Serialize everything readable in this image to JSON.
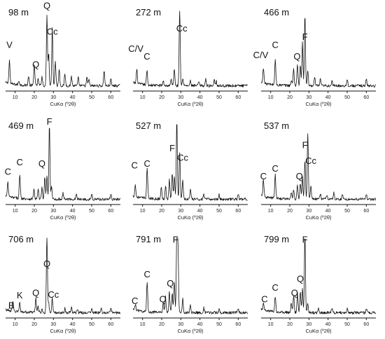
{
  "chart_data": [
    {
      "type": "line",
      "title": "98 m",
      "xlabel": "CuKα (º2θ)",
      "xlim": [
        5,
        65
      ],
      "x_ticks": [
        10,
        20,
        30,
        40,
        50,
        60
      ],
      "peaks": [
        [
          7,
          0.3
        ],
        [
          12,
          0.05
        ],
        [
          17,
          0.12
        ],
        [
          20,
          0.28
        ],
        [
          22,
          0.08
        ],
        [
          24,
          0.12
        ],
        [
          26.6,
          0.9
        ],
        [
          27.5,
          0.42
        ],
        [
          29.4,
          0.75
        ],
        [
          31,
          0.32
        ],
        [
          33,
          0.22
        ],
        [
          36,
          0.15
        ],
        [
          39.4,
          0.12
        ],
        [
          43,
          0.1
        ],
        [
          47.5,
          0.1
        ],
        [
          48.5,
          0.08
        ],
        [
          56.5,
          0.2
        ],
        [
          60,
          0.08
        ]
      ],
      "annotations": [
        {
          "text": "Q",
          "x": 26.6,
          "y": 1.05
        },
        {
          "text": "Cc",
          "x": 29.4,
          "y": 0.72
        },
        {
          "text": "V",
          "x": 7,
          "y": 0.55
        },
        {
          "text": "Q",
          "x": 20.8,
          "y": 0.3
        }
      ]
    },
    {
      "type": "line",
      "title": "272 m",
      "xlabel": "CuKα (º2θ)",
      "xlim": [
        5,
        65
      ],
      "x_ticks": [
        10,
        20,
        30,
        40,
        50,
        60
      ],
      "peaks": [
        [
          7,
          0.18
        ],
        [
          12.3,
          0.18
        ],
        [
          20.8,
          0.06
        ],
        [
          25,
          0.08
        ],
        [
          26.6,
          0.22
        ],
        [
          29.4,
          1.0
        ],
        [
          31,
          0.1
        ],
        [
          35,
          0.06
        ],
        [
          39.4,
          0.05
        ],
        [
          43,
          0.08
        ],
        [
          47.5,
          0.08
        ],
        [
          48.5,
          0.06
        ]
      ],
      "annotations": [
        {
          "text": "Cc",
          "x": 30.5,
          "y": 0.76
        },
        {
          "text": "C/V",
          "x": 6.5,
          "y": 0.5
        },
        {
          "text": "C",
          "x": 12.3,
          "y": 0.4
        }
      ]
    },
    {
      "type": "line",
      "title": "466 m",
      "xlabel": "CuKα (º2θ)",
      "xlim": [
        5,
        65
      ],
      "x_ticks": [
        10,
        20,
        30,
        40,
        50,
        60
      ],
      "peaks": [
        [
          6.2,
          0.2
        ],
        [
          12.4,
          0.32
        ],
        [
          20.8,
          0.06
        ],
        [
          22,
          0.22
        ],
        [
          24,
          0.28
        ],
        [
          25.5,
          0.25
        ],
        [
          26.6,
          0.55
        ],
        [
          27.9,
          0.9
        ],
        [
          29.4,
          0.18
        ],
        [
          33,
          0.1
        ],
        [
          36,
          0.08
        ],
        [
          42,
          0.06
        ],
        [
          50,
          0.08
        ],
        [
          60,
          0.08
        ]
      ],
      "annotations": [
        {
          "text": "F",
          "x": 27.9,
          "y": 0.65
        },
        {
          "text": "C",
          "x": 12.4,
          "y": 0.55
        },
        {
          "text": "C/V",
          "x": 4.8,
          "y": 0.42
        },
        {
          "text": "Q",
          "x": 23.8,
          "y": 0.4
        }
      ]
    },
    {
      "type": "line",
      "title": "469 m",
      "xlabel": "CuKα (º2θ)",
      "xlim": [
        5,
        65
      ],
      "x_ticks": [
        10,
        20,
        30,
        40,
        50,
        60
      ],
      "peaks": [
        [
          6.2,
          0.18
        ],
        [
          12.4,
          0.3
        ],
        [
          19.8,
          0.12
        ],
        [
          22,
          0.12
        ],
        [
          24,
          0.14
        ],
        [
          25.5,
          0.28
        ],
        [
          26.6,
          0.3
        ],
        [
          27.9,
          0.95
        ],
        [
          29,
          0.15
        ],
        [
          35,
          0.08
        ],
        [
          42,
          0.06
        ],
        [
          50,
          0.06
        ],
        [
          60,
          0.06
        ]
      ],
      "annotations": [
        {
          "text": "F",
          "x": 27.9,
          "y": 1.02
        },
        {
          "text": "C",
          "x": 12.4,
          "y": 0.5
        },
        {
          "text": "Q",
          "x": 24,
          "y": 0.48
        },
        {
          "text": "C",
          "x": 6.2,
          "y": 0.38
        }
      ]
    },
    {
      "type": "line",
      "title": "527 m",
      "xlabel": "CuKα (º2θ)",
      "xlim": [
        5,
        65
      ],
      "x_ticks": [
        10,
        20,
        30,
        40,
        50,
        60
      ],
      "peaks": [
        [
          6.2,
          0.15
        ],
        [
          12.4,
          0.4
        ],
        [
          19.8,
          0.15
        ],
        [
          22,
          0.18
        ],
        [
          24,
          0.25
        ],
        [
          25.5,
          0.32
        ],
        [
          26.6,
          0.3
        ],
        [
          27.9,
          1.0
        ],
        [
          29.4,
          0.6
        ],
        [
          31,
          0.25
        ],
        [
          35,
          0.12
        ],
        [
          42,
          0.06
        ],
        [
          50,
          0.06
        ],
        [
          60,
          0.06
        ]
      ],
      "annotations": [
        {
          "text": "F",
          "x": 25.5,
          "y": 0.68
        },
        {
          "text": "Cc",
          "x": 31,
          "y": 0.56
        },
        {
          "text": "C",
          "x": 12.4,
          "y": 0.48
        },
        {
          "text": "C",
          "x": 5.8,
          "y": 0.46
        }
      ]
    },
    {
      "type": "line",
      "title": "537 m",
      "xlabel": "CuKα (º2θ)",
      "xlim": [
        5,
        65
      ],
      "x_ticks": [
        10,
        20,
        30,
        40,
        50,
        60
      ],
      "peaks": [
        [
          6.2,
          0.22
        ],
        [
          12.4,
          0.3
        ],
        [
          20.8,
          0.08
        ],
        [
          22,
          0.12
        ],
        [
          24,
          0.18
        ],
        [
          25.5,
          0.2
        ],
        [
          26.6,
          0.28
        ],
        [
          27.9,
          0.5
        ],
        [
          29.4,
          0.85
        ],
        [
          31,
          0.18
        ],
        [
          36,
          0.08
        ],
        [
          39.4,
          0.06
        ],
        [
          43,
          0.08
        ],
        [
          47.5,
          0.06
        ],
        [
          60,
          0.06
        ]
      ],
      "annotations": [
        {
          "text": "F",
          "x": 27.9,
          "y": 0.72
        },
        {
          "text": "Cc",
          "x": 31,
          "y": 0.52
        },
        {
          "text": "C",
          "x": 12.4,
          "y": 0.42
        },
        {
          "text": "C",
          "x": 6.2,
          "y": 0.32
        },
        {
          "text": "Q",
          "x": 25,
          "y": 0.32
        }
      ]
    },
    {
      "type": "line",
      "title": "706 m",
      "xlabel": "CuKα (º2θ)",
      "xlim": [
        5,
        65
      ],
      "x_ticks": [
        10,
        20,
        30,
        40,
        50,
        60
      ],
      "peaks": [
        [
          8.8,
          0.12
        ],
        [
          12.4,
          0.12
        ],
        [
          20.8,
          0.18
        ],
        [
          22,
          0.08
        ],
        [
          24,
          0.05
        ],
        [
          26.6,
          1.0
        ],
        [
          27.5,
          0.12
        ],
        [
          29.4,
          0.18
        ],
        [
          36,
          0.06
        ],
        [
          39.4,
          0.06
        ],
        [
          42.5,
          0.05
        ],
        [
          50,
          0.06
        ],
        [
          55,
          0.05
        ],
        [
          60,
          0.06
        ]
      ],
      "annotations": [
        {
          "text": "Q",
          "x": 26.6,
          "y": 0.65
        },
        {
          "text": "Q",
          "x": 20.8,
          "y": 0.28
        },
        {
          "text": "Cc",
          "x": 30,
          "y": 0.26
        },
        {
          "text": "K",
          "x": 12.4,
          "y": 0.25
        },
        {
          "text": "B",
          "x": 8,
          "y": 0.12
        }
      ]
    },
    {
      "type": "line",
      "title": "791 m",
      "xlabel": "CuKα (º2θ)",
      "xlim": [
        5,
        65
      ],
      "x_ticks": [
        10,
        20,
        30,
        40,
        50,
        60
      ],
      "peaks": [
        [
          6.2,
          0.08
        ],
        [
          12.4,
          0.38
        ],
        [
          20.8,
          0.14
        ],
        [
          22,
          0.2
        ],
        [
          24,
          0.28
        ],
        [
          25.5,
          0.25
        ],
        [
          26.6,
          0.4
        ],
        [
          27.9,
          1.0
        ],
        [
          28.5,
          0.85
        ],
        [
          31,
          0.18
        ],
        [
          35,
          0.1
        ],
        [
          42,
          0.06
        ],
        [
          50,
          0.05
        ],
        [
          60,
          0.05
        ]
      ],
      "annotations": [
        {
          "text": "F",
          "x": 27.2,
          "y": 0.96
        },
        {
          "text": "C",
          "x": 12.4,
          "y": 0.52
        },
        {
          "text": "Q",
          "x": 24.5,
          "y": 0.4
        },
        {
          "text": "Q",
          "x": 20.6,
          "y": 0.2
        },
        {
          "text": "C",
          "x": 6,
          "y": 0.18
        }
      ]
    },
    {
      "type": "line",
      "title": "799 m",
      "xlabel": "CuKα (º2θ)",
      "xlim": [
        5,
        65
      ],
      "x_ticks": [
        10,
        20,
        30,
        40,
        50,
        60
      ],
      "peaks": [
        [
          6.2,
          0.08
        ],
        [
          12.4,
          0.2
        ],
        [
          20.8,
          0.12
        ],
        [
          22,
          0.22
        ],
        [
          24,
          0.24
        ],
        [
          25.5,
          0.28
        ],
        [
          26.6,
          0.3
        ],
        [
          27.9,
          1.0
        ],
        [
          29.4,
          0.12
        ],
        [
          35,
          0.06
        ],
        [
          42,
          0.06
        ],
        [
          50,
          0.05
        ],
        [
          60,
          0.05
        ]
      ],
      "annotations": [
        {
          "text": "F",
          "x": 27.9,
          "y": 0.96
        },
        {
          "text": "Q",
          "x": 25.5,
          "y": 0.46
        },
        {
          "text": "C",
          "x": 12.4,
          "y": 0.35
        },
        {
          "text": "Q",
          "x": 22.5,
          "y": 0.28
        },
        {
          "text": "C",
          "x": 6.8,
          "y": 0.2
        }
      ]
    }
  ]
}
